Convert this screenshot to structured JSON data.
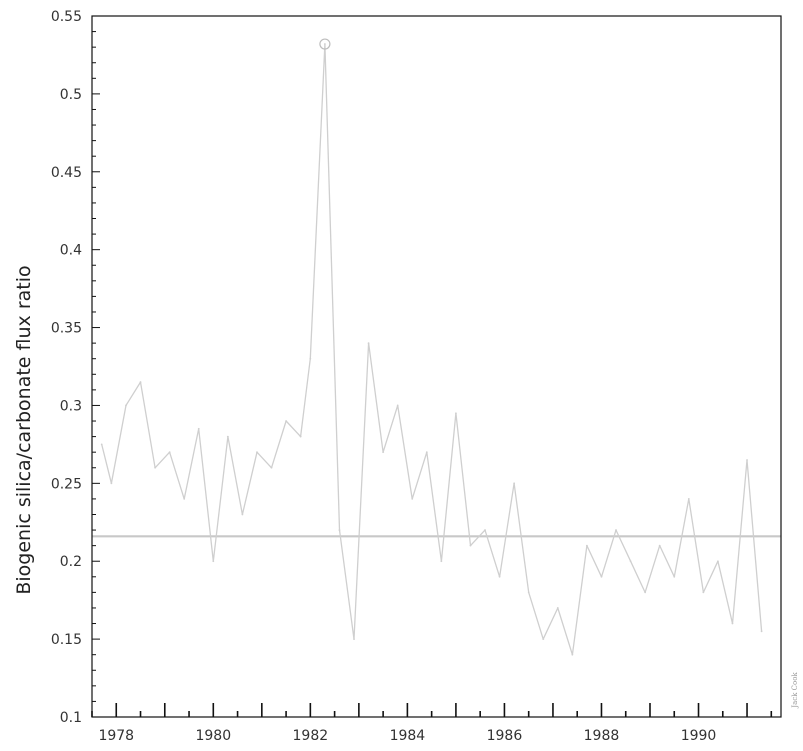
{
  "chart_data": {
    "type": "line",
    "title": "",
    "xlabel": "",
    "ylabel": "Biogenic silica/carbonate flux ratio",
    "xlim": [
      1977.5,
      1991.7
    ],
    "ylim": [
      0.1,
      0.55
    ],
    "x_ticks": [
      1978,
      1980,
      1982,
      1984,
      1986,
      1988,
      1990
    ],
    "x_tick_labels": [
      "1978",
      "1980",
      "1982",
      "1984",
      "1986",
      "1988",
      "1990"
    ],
    "y_ticks": [
      0.1,
      0.15,
      0.2,
      0.25,
      0.3,
      0.35,
      0.4,
      0.45,
      0.5,
      0.55
    ],
    "y_tick_labels": [
      "0.1",
      "0.15",
      "0.2",
      "0.25",
      "0.3",
      "0.35",
      "0.4",
      "0.45",
      "0.5",
      "0.55"
    ],
    "grid": false,
    "reference_line": {
      "y": 0.216,
      "color": "#c8c8c8"
    },
    "peak_marker": {
      "x": 1982.3,
      "y": 0.532
    },
    "series_color": "#cfcfcf",
    "x": [
      1977.7,
      1977.9,
      1978.2,
      1978.5,
      1978.8,
      1979.1,
      1979.4,
      1979.7,
      1980.0,
      1980.3,
      1980.6,
      1980.9,
      1981.2,
      1981.5,
      1981.8,
      1982.0,
      1982.3,
      1982.6,
      1982.9,
      1983.2,
      1983.5,
      1983.8,
      1984.1,
      1984.4,
      1984.7,
      1985.0,
      1985.3,
      1985.6,
      1985.9,
      1986.2,
      1986.5,
      1986.8,
      1987.1,
      1987.4,
      1987.7,
      1988.0,
      1988.3,
      1988.6,
      1988.9,
      1989.2,
      1989.5,
      1989.8,
      1990.1,
      1990.4,
      1990.7,
      1991.0,
      1991.3
    ],
    "values": [
      0.275,
      0.25,
      0.3,
      0.315,
      0.26,
      0.27,
      0.24,
      0.285,
      0.2,
      0.28,
      0.23,
      0.27,
      0.26,
      0.29,
      0.28,
      0.33,
      0.532,
      0.22,
      0.15,
      0.34,
      0.27,
      0.3,
      0.24,
      0.27,
      0.2,
      0.295,
      0.21,
      0.22,
      0.19,
      0.25,
      0.18,
      0.15,
      0.17,
      0.14,
      0.21,
      0.19,
      0.22,
      0.2,
      0.18,
      0.21,
      0.19,
      0.24,
      0.18,
      0.2,
      0.16,
      0.265,
      0.155
    ]
  },
  "credit_text": "Jack Cook"
}
